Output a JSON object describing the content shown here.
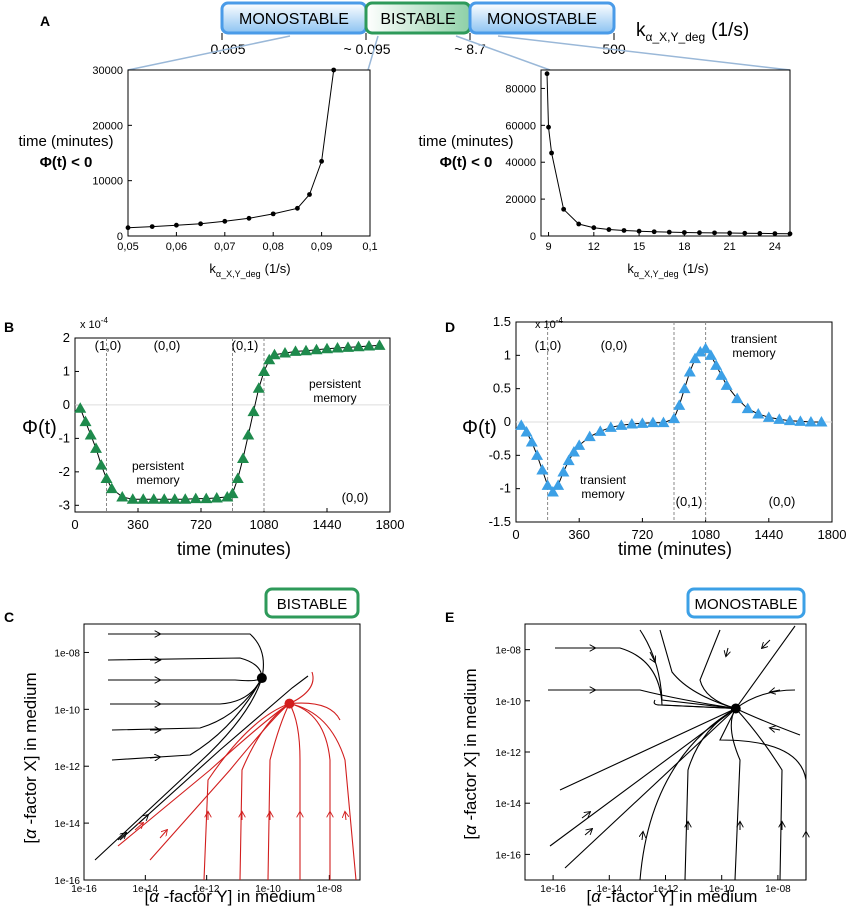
{
  "regime_bar": {
    "labels": [
      "MONOSTABLE",
      "BISTABLE",
      "MONOSTABLE"
    ],
    "boundaries": [
      "0.005",
      "~ 0.095",
      "~ 8.7",
      "500"
    ],
    "parameter": "k",
    "parameter_sub": "α_X,Y_deg",
    "units": "(1/s)",
    "colors": {
      "monostable": "#4a9be8",
      "bistable": "#2e9a5a"
    }
  },
  "panel_labels": {
    "A": "A",
    "B": "B",
    "C": "C",
    "D": "D",
    "E": "E"
  },
  "chart_data": [
    {
      "id": "A-left",
      "type": "line",
      "x": [
        0.05,
        0.055,
        0.06,
        0.065,
        0.07,
        0.075,
        0.08,
        0.085,
        0.0875,
        0.09,
        0.0925
      ],
      "y": [
        1500,
        1700,
        1950,
        2200,
        2650,
        3200,
        4000,
        5000,
        7500,
        13500,
        30000
      ],
      "xlim": [
        0.05,
        0.1
      ],
      "ylim": [
        0,
        30000
      ],
      "xticks": [
        "0,05",
        "0,06",
        "0,07",
        "0,08",
        "0,09",
        "0,1"
      ],
      "yticks": [
        "0",
        "10000",
        "20000",
        "30000"
      ],
      "ylabel_line1": "time (minutes)",
      "ylabel_line2": "Φ(t) < 0",
      "xlabel": "k",
      "xlabel_sub": "α_X,Y_deg",
      "xlabel_units": "(1/s)"
    },
    {
      "id": "A-right",
      "type": "line",
      "x": [
        8.9,
        9.0,
        9.2,
        10.0,
        11.0,
        12.0,
        13.0,
        14.0,
        15.0,
        16.0,
        17.0,
        18.0,
        19.0,
        20.0,
        21.0,
        22.0,
        23.0,
        24.0,
        25.0
      ],
      "y": [
        88000,
        59000,
        45000,
        14500,
        6500,
        4500,
        3500,
        3000,
        2600,
        2300,
        2100,
        1900,
        1800,
        1700,
        1600,
        1500,
        1400,
        1300,
        1200
      ],
      "xlim": [
        8.5,
        25
      ],
      "ylim": [
        0,
        90000
      ],
      "xticks": [
        "9",
        "12",
        "15",
        "18",
        "21",
        "24"
      ],
      "yticks": [
        "0",
        "20000",
        "40000",
        "60000",
        "80000"
      ],
      "ylabel_line1": "time (minutes)",
      "ylabel_line2": "Φ(t) < 0",
      "xlabel": "k",
      "xlabel_sub": "α_X,Y_deg",
      "xlabel_units": "(1/s)"
    },
    {
      "id": "B",
      "type": "line",
      "x": [
        30,
        60,
        90,
        120,
        150,
        180,
        210,
        270,
        330,
        390,
        450,
        510,
        570,
        630,
        690,
        750,
        810,
        870,
        900,
        930,
        960,
        990,
        1020,
        1050,
        1080,
        1110,
        1140,
        1200,
        1260,
        1320,
        1380,
        1440,
        1500,
        1560,
        1620,
        1680,
        1740
      ],
      "y": [
        -0.1,
        -0.5,
        -0.9,
        -1.3,
        -1.8,
        -2.2,
        -2.5,
        -2.75,
        -2.82,
        -2.82,
        -2.82,
        -2.82,
        -2.82,
        -2.82,
        -2.8,
        -2.8,
        -2.78,
        -2.75,
        -2.65,
        -2.2,
        -1.6,
        -0.9,
        -0.2,
        0.5,
        1.0,
        1.35,
        1.5,
        1.55,
        1.6,
        1.62,
        1.65,
        1.68,
        1.7,
        1.72,
        1.74,
        1.76,
        1.78
      ],
      "xlim": [
        0,
        1800
      ],
      "ylim": [
        -3.2,
        2
      ],
      "xticks": [
        "0",
        "360",
        "720",
        "1080",
        "1440",
        "1800"
      ],
      "yticks": [
        "-3",
        "-2",
        "-1",
        "0",
        "1",
        "2"
      ],
      "scale": "x 10",
      "scale_exp": "-4",
      "xlabel": "time (minutes)",
      "ylabel": "Φ(t)",
      "vlines": [
        180,
        900,
        1080
      ],
      "states": [
        "(1,0)",
        "(0,0)",
        "(0,1)",
        "(0,0)"
      ],
      "annotations": [
        "persistent",
        "memory",
        "persistent",
        "memory"
      ],
      "color": "#1e8a4c"
    },
    {
      "id": "D",
      "type": "line",
      "x": [
        30,
        60,
        90,
        120,
        150,
        180,
        210,
        240,
        270,
        300,
        330,
        360,
        420,
        480,
        540,
        600,
        660,
        720,
        780,
        840,
        900,
        930,
        960,
        990,
        1020,
        1050,
        1080,
        1110,
        1140,
        1170,
        1200,
        1260,
        1320,
        1380,
        1440,
        1500,
        1560,
        1620,
        1680,
        1740
      ],
      "y": [
        -0.05,
        -0.15,
        -0.3,
        -0.5,
        -0.72,
        -0.95,
        -1.05,
        -0.95,
        -0.75,
        -0.58,
        -0.45,
        -0.35,
        -0.22,
        -0.14,
        -0.08,
        -0.05,
        -0.03,
        -0.02,
        -0.01,
        -0.01,
        0.05,
        0.25,
        0.5,
        0.75,
        0.95,
        1.05,
        1.1,
        1.0,
        0.85,
        0.7,
        0.55,
        0.35,
        0.2,
        0.12,
        0.07,
        0.04,
        0.02,
        0.01,
        0.0,
        0.0
      ],
      "xlim": [
        0,
        1800
      ],
      "ylim": [
        -1.5,
        1.5
      ],
      "xticks": [
        "0",
        "360",
        "720",
        "1080",
        "1440",
        "1800"
      ],
      "yticks": [
        "-1.5",
        "-1",
        "-0.5",
        "0",
        "0.5",
        "1",
        "1.5"
      ],
      "scale": "x 10",
      "scale_exp": "-4",
      "xlabel": "time (minutes)",
      "ylabel": "Φ(t)",
      "vlines": [
        180,
        900,
        1080
      ],
      "states": [
        "(1,0)",
        "(0,0)",
        "(0,1)",
        "(0,0)"
      ],
      "annotations": [
        "transient",
        "memory",
        "transient",
        "memory"
      ],
      "color": "#3ca0e6"
    },
    {
      "id": "C",
      "type": "line",
      "title": "BISTABLE",
      "xlabel_parts": [
        "[",
        "α",
        " -factor Y] in medium"
      ],
      "ylabel_parts": [
        "[",
        "α",
        " -factor X] in medium"
      ],
      "xticks": [
        "1e-16",
        "1e-14",
        "1e-12",
        "1e-10",
        "1e-08"
      ],
      "yticks": [
        "1e-16",
        "1e-14",
        "1e-12",
        "1e-10",
        "1e-08"
      ],
      "xlim_log10": [
        -16,
        -7
      ],
      "ylim_log10": [
        -16,
        -7
      ],
      "fixed_points": [
        {
          "logY": -10.2,
          "logX": -8.9,
          "color": "#000000"
        },
        {
          "logY": -9.3,
          "logX": -9.8,
          "color": "#d21e1e"
        }
      ]
    },
    {
      "id": "E",
      "type": "line",
      "title": "MONOSTABLE",
      "xlabel_parts": [
        "[",
        "α",
        " -factor Y] in medium"
      ],
      "ylabel_parts": [
        "[",
        "α",
        " -factor X] in medium"
      ],
      "xticks": [
        "1e-16",
        "1e-14",
        "1e-12",
        "1e-10",
        "1e-08"
      ],
      "yticks": [
        "1e-16",
        "1e-14",
        "1e-12",
        "1e-10",
        "1e-08"
      ],
      "xlim_log10": [
        -17,
        -7
      ],
      "ylim_log10": [
        -17,
        -7
      ],
      "fixed_points": [
        {
          "logY": -9.5,
          "logX": -10.3,
          "color": "#000000"
        }
      ]
    }
  ]
}
